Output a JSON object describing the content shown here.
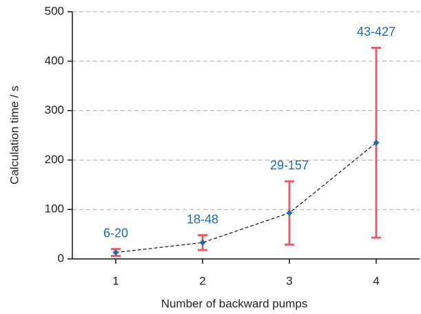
{
  "chart_data": {
    "type": "errorline",
    "x_label": "Number of backward pumps",
    "y_label": "Calculation time  / s",
    "xlim": [
      0.5,
      4.5
    ],
    "xticks": [
      1,
      2,
      3,
      4
    ],
    "ylim": [
      0,
      500
    ],
    "yticks": [
      0,
      100,
      200,
      300,
      400,
      500
    ],
    "grid": true,
    "series": [
      {
        "x": [
          1,
          2,
          3,
          4
        ],
        "values": [
          13,
          33,
          93,
          235
        ],
        "low": [
          6,
          18,
          29,
          43
        ],
        "high": [
          20,
          48,
          157,
          427
        ],
        "range_labels": [
          "6-20",
          "18-48",
          "29-157",
          "43-427"
        ],
        "color": "#1a6db3",
        "error_color": "#e0606e",
        "line_color": "#111"
      }
    ]
  }
}
